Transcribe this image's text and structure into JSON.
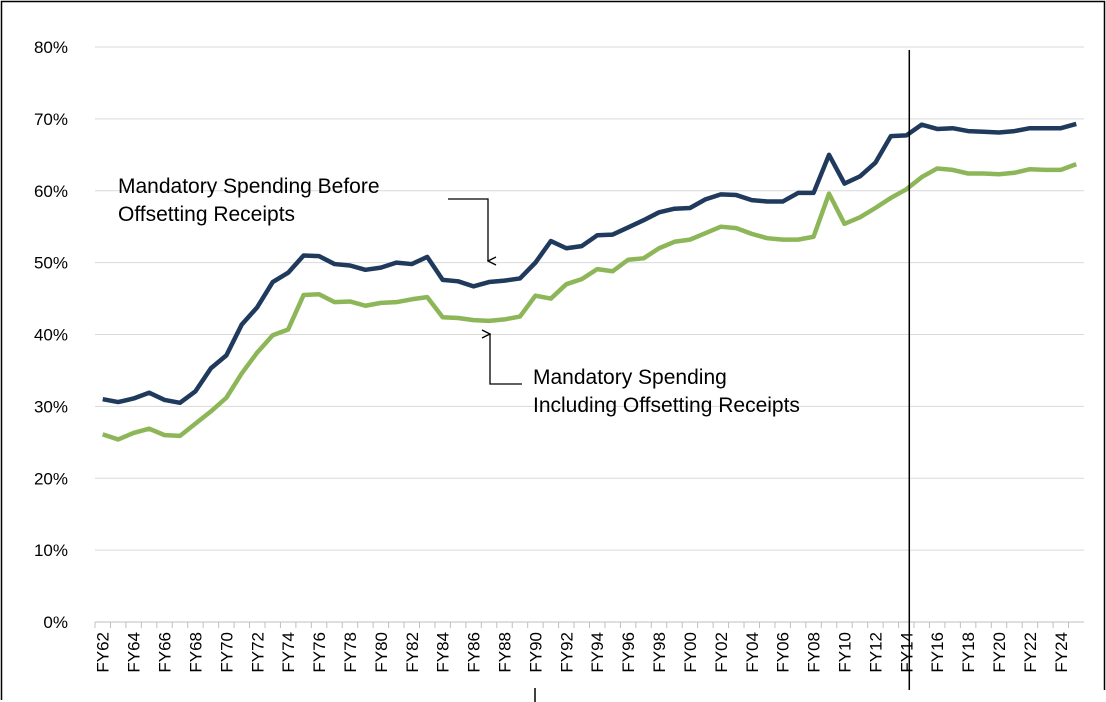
{
  "chart_data": {
    "type": "line",
    "categories": [
      "FY62",
      null,
      "FY64",
      null,
      "FY66",
      null,
      "FY68",
      null,
      "FY70",
      null,
      "FY72",
      null,
      "FY74",
      null,
      "FY76",
      null,
      "FY78",
      null,
      "FY80",
      null,
      "FY82",
      null,
      "FY84",
      null,
      "FY86",
      null,
      "FY88",
      null,
      "FY90",
      null,
      "FY92",
      null,
      "FY94",
      null,
      "FY96",
      null,
      "FY98",
      null,
      "FY00",
      null,
      "FY02",
      null,
      "FY04",
      null,
      "FY06",
      null,
      "FY08",
      null,
      "FY10",
      null,
      "FY12",
      null,
      "FY14",
      null,
      "FY16",
      null,
      "FY18",
      null,
      "FY20",
      null,
      "FY22",
      null,
      "FY24",
      null
    ],
    "series": [
      {
        "color": "#1f3a5c",
        "values": [
          31,
          30.6,
          31.1,
          31.9,
          30.9,
          30.5,
          32.1,
          35.3,
          37.1,
          41.4,
          43.8,
          47.3,
          48.6,
          51,
          50.9,
          49.8,
          49.6,
          49,
          49.3,
          50,
          49.8,
          50.8,
          47.6,
          47.4,
          46.7,
          47.3,
          47.5,
          47.8,
          50,
          53,
          52,
          52.3,
          53.8,
          53.9,
          54.9,
          55.9,
          57,
          57.5,
          57.6,
          58.8,
          59.5,
          59.4,
          58.7,
          58.5,
          58.5,
          59.7,
          59.7,
          65,
          61,
          62,
          63.9,
          67.6,
          67.7,
          69.2,
          68.6,
          68.7,
          68.3,
          68.2,
          68.1,
          68.3,
          68.7,
          68.7,
          68.7,
          69.3
        ]
      },
      {
        "color": "#8db659",
        "values": [
          26.1,
          25.4,
          26.3,
          26.9,
          26,
          25.9,
          27.6,
          29.3,
          31.2,
          34.6,
          37.5,
          39.9,
          40.7,
          45.5,
          45.6,
          44.5,
          44.6,
          44,
          44.4,
          44.5,
          44.9,
          45.2,
          42.4,
          42.3,
          42,
          41.9,
          42.1,
          42.5,
          45.4,
          45,
          47,
          47.7,
          49.1,
          48.8,
          50.4,
          50.6,
          52,
          52.9,
          53.2,
          54.1,
          55,
          54.8,
          54,
          53.4,
          53.2,
          53.2,
          53.6,
          59.6,
          55.4,
          56.3,
          57.6,
          59,
          60.2,
          61.9,
          63.1,
          62.9,
          62.4,
          62.4,
          62.3,
          62.5,
          63,
          62.9,
          62.9,
          63.7
        ]
      }
    ],
    "ylim": [
      0,
      80
    ],
    "yticks": [
      {
        "value": 0,
        "label": "0%"
      },
      {
        "value": 10,
        "label": "10%"
      },
      {
        "value": 20,
        "label": "20%"
      },
      {
        "value": 30,
        "label": "30%"
      },
      {
        "value": 40,
        "label": "40%"
      },
      {
        "value": 50,
        "label": "50%"
      },
      {
        "value": 60,
        "label": "60%"
      },
      {
        "value": 70,
        "label": "70%"
      },
      {
        "value": 80,
        "label": "80%"
      }
    ],
    "grid": true,
    "annotations": [
      {
        "lines": [
          "Mandatory Spending Before",
          "Offsetting Receipts"
        ]
      },
      {
        "lines": [
          "Mandatory Spending",
          "Including Offsetting Receipts"
        ]
      }
    ]
  }
}
